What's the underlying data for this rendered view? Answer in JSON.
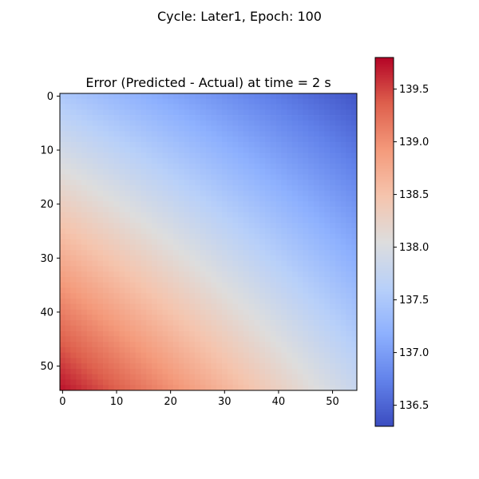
{
  "figure": {
    "suptitle": "Cycle: Later1, Epoch: 100"
  },
  "chart_data": {
    "type": "heatmap",
    "title": "Error (Predicted - Actual) at time = 2 s",
    "xlabel": "",
    "ylabel": "",
    "grid_size": 55,
    "x_ticks": [
      0,
      10,
      20,
      30,
      40,
      50
    ],
    "y_ticks": [
      0,
      10,
      20,
      30,
      40,
      50
    ],
    "y_axis_inverted": true,
    "colormap": "coolwarm",
    "value_range": [
      136.3,
      139.8
    ],
    "corner_values": {
      "row0_col0": 137.5,
      "row0_col54": 136.4,
      "row54_col0": 139.7,
      "row54_col54": 137.8
    },
    "colorbar": {
      "ticks": [
        136.5,
        137.0,
        137.5,
        138.0,
        138.5,
        139.0,
        139.5
      ],
      "tick_labels": [
        "136.5",
        "137.0",
        "137.5",
        "138.0",
        "138.5",
        "139.0",
        "139.5"
      ]
    },
    "grid": false
  }
}
